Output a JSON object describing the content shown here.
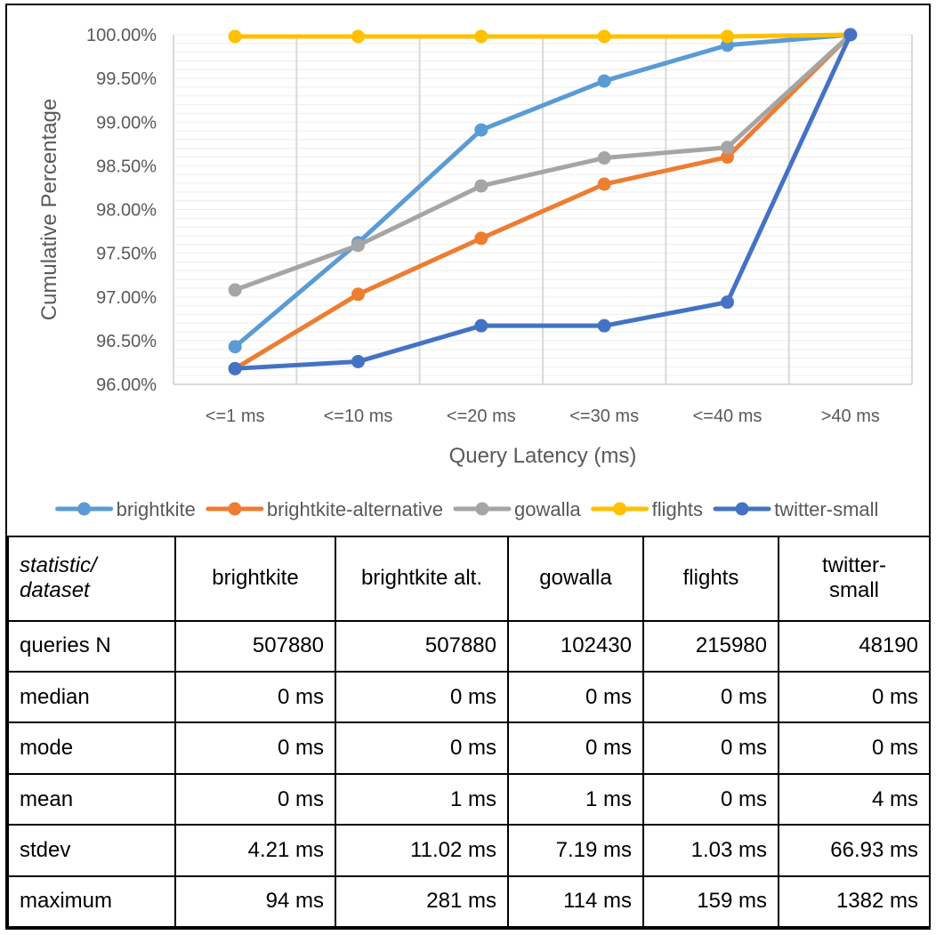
{
  "chart_data": {
    "type": "line",
    "xlabel": "Query Latency (ms)",
    "ylabel": "Cumulative Percentage",
    "categories": [
      "<=1 ms",
      "<=10 ms",
      "<=20 ms",
      "<=30 ms",
      "<=40 ms",
      ">40 ms"
    ],
    "ylim": [
      96.0,
      100.0
    ],
    "yticks": [
      "96.00%",
      "96.50%",
      "97.00%",
      "97.50%",
      "98.00%",
      "98.50%",
      "99.00%",
      "99.50%",
      "100.00%"
    ],
    "grid": true,
    "legend_position": "bottom",
    "series": [
      {
        "name": "brightkite",
        "color": "#5B9BD5",
        "values": [
          96.43,
          97.62,
          98.91,
          99.47,
          99.88,
          100.0
        ]
      },
      {
        "name": "brightkite-alternative",
        "color": "#ED7D31",
        "values": [
          96.18,
          97.03,
          97.67,
          98.29,
          98.6,
          100.0
        ]
      },
      {
        "name": "gowalla",
        "color": "#A5A5A5",
        "values": [
          97.08,
          97.59,
          98.27,
          98.59,
          98.71,
          100.0
        ]
      },
      {
        "name": "flights",
        "color": "#FFC000",
        "values": [
          99.98,
          99.98,
          99.98,
          99.98,
          99.98,
          100.0
        ]
      },
      {
        "name": "twitter-small",
        "color": "#4472C4",
        "values": [
          96.18,
          96.26,
          96.67,
          96.67,
          96.94,
          100.0
        ]
      }
    ]
  },
  "table": {
    "corner_line1": "statistic/",
    "corner_line2": "dataset",
    "headers": [
      "brightkite",
      "brightkite alt.",
      "gowalla",
      "flights"
    ],
    "header_last_line1": "twitter-",
    "header_last_line2": "small",
    "rows": [
      {
        "label": "queries N",
        "values": [
          "507880",
          "507880",
          "102430",
          "215980",
          "48190"
        ]
      },
      {
        "label": "median",
        "values": [
          "0 ms",
          "0 ms",
          "0 ms",
          "0 ms",
          "0 ms"
        ]
      },
      {
        "label": "mode",
        "values": [
          "0 ms",
          "0 ms",
          "0 ms",
          "0 ms",
          "0 ms"
        ]
      },
      {
        "label": "mean",
        "values": [
          "0 ms",
          "1 ms",
          "1 ms",
          "0 ms",
          "4 ms"
        ]
      },
      {
        "label": "stdev",
        "values": [
          "4.21 ms",
          "11.02 ms",
          "7.19 ms",
          "1.03 ms",
          "66.93 ms"
        ]
      },
      {
        "label": "maximum",
        "values": [
          "94 ms",
          "281 ms",
          "114 ms",
          "159 ms",
          "1382 ms"
        ]
      }
    ]
  }
}
